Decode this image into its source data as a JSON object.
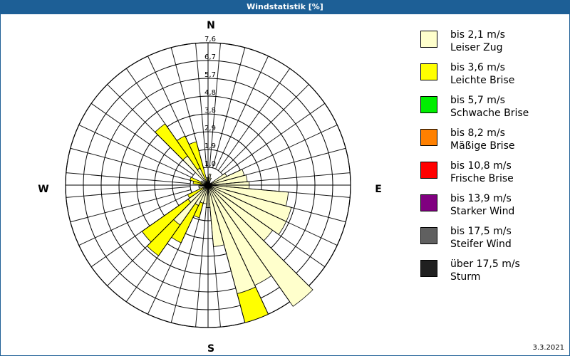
{
  "title": "Windstatistik [%]",
  "date": "3.3.2021",
  "directions": {
    "n": "N",
    "e": "E",
    "s": "S",
    "w": "W"
  },
  "legend": [
    {
      "line1": "bis 2,1 m/s",
      "line2": "Leiser Zug",
      "color": "#ffffcc"
    },
    {
      "line1": "bis 3,6 m/s",
      "line2": "Leichte Brise",
      "color": "#ffff00"
    },
    {
      "line1": "bis 5,7 m/s",
      "line2": "Schwache Brise",
      "color": "#00ee00"
    },
    {
      "line1": "bis 8,2 m/s",
      "line2": "Mäßige Brise",
      "color": "#ff8000"
    },
    {
      "line1": "bis 10,8 m/s",
      "line2": "Frische Brise",
      "color": "#ff0000"
    },
    {
      "line1": "bis 13,9 m/s",
      "line2": "Starker Wind",
      "color": "#800080"
    },
    {
      "line1": "bis 17,5 m/s",
      "line2": "Steifer Wind",
      "color": "#606060"
    },
    {
      "line1": "über 17,5 m/s",
      "line2": "Sturm",
      "color": "#202020"
    }
  ],
  "chart_data": {
    "type": "wind-rose",
    "title": "Windstatistik [%]",
    "ring_labels": [
      "1,0",
      "1,9",
      "2,9",
      "3,8",
      "4,8",
      "5,7",
      "6,7",
      "7,6"
    ],
    "r_max": 7.6,
    "sector_width_deg": 10,
    "speed_classes": [
      "bis 2,1 m/s",
      "bis 3,6 m/s",
      "bis 5,7 m/s",
      "bis 8,2 m/s",
      "bis 10,8 m/s",
      "bis 13,9 m/s",
      "bis 17,5 m/s",
      "über 17,5 m/s"
    ],
    "sectors": [
      {
        "dir": 0,
        "values": [
          0.3,
          0
        ]
      },
      {
        "dir": 10,
        "values": [
          0.6,
          0
        ]
      },
      {
        "dir": 20,
        "values": [
          0.4,
          0
        ]
      },
      {
        "dir": 30,
        "values": [
          0.2,
          0
        ]
      },
      {
        "dir": 60,
        "values": [
          1.1,
          0
        ]
      },
      {
        "dir": 70,
        "values": [
          2.0,
          0
        ]
      },
      {
        "dir": 80,
        "values": [
          2.1,
          0
        ]
      },
      {
        "dir": 90,
        "values": [
          2.2,
          0
        ]
      },
      {
        "dir": 100,
        "values": [
          4.3,
          0
        ]
      },
      {
        "dir": 110,
        "values": [
          4.6,
          0
        ]
      },
      {
        "dir": 120,
        "values": [
          4.6,
          0
        ]
      },
      {
        "dir": 130,
        "values": [
          4.2,
          0
        ]
      },
      {
        "dir": 140,
        "values": [
          7.9,
          0
        ]
      },
      {
        "dir": 150,
        "values": [
          5.9,
          0
        ]
      },
      {
        "dir": 160,
        "values": [
          6.0,
          1.6
        ]
      },
      {
        "dir": 170,
        "values": [
          3.3,
          0
        ]
      },
      {
        "dir": 180,
        "values": [
          1.2,
          0
        ]
      },
      {
        "dir": 190,
        "values": [
          1.0,
          0
        ]
      },
      {
        "dir": 200,
        "values": [
          1.0,
          0.8
        ]
      },
      {
        "dir": 210,
        "values": [
          1.2,
          2.2
        ]
      },
      {
        "dir": 220,
        "values": [
          2.6,
          2.0
        ]
      },
      {
        "dir": 230,
        "values": [
          1.3,
          3.0
        ]
      },
      {
        "dir": 240,
        "values": [
          0.3,
          0.9
        ]
      },
      {
        "dir": 250,
        "values": [
          0.5,
          0
        ]
      },
      {
        "dir": 260,
        "values": [
          0.5,
          0
        ]
      },
      {
        "dir": 280,
        "values": [
          0.3,
          0.5
        ]
      },
      {
        "dir": 290,
        "values": [
          0.4,
          0.6
        ]
      },
      {
        "dir": 300,
        "values": [
          0.4,
          0
        ]
      },
      {
        "dir": 320,
        "values": [
          1.9,
          2.1
        ]
      },
      {
        "dir": 330,
        "values": [
          1.0,
          1.9
        ]
      },
      {
        "dir": 340,
        "values": [
          0,
          2.4
        ]
      },
      {
        "dir": 350,
        "values": [
          0.4,
          0
        ]
      }
    ]
  }
}
